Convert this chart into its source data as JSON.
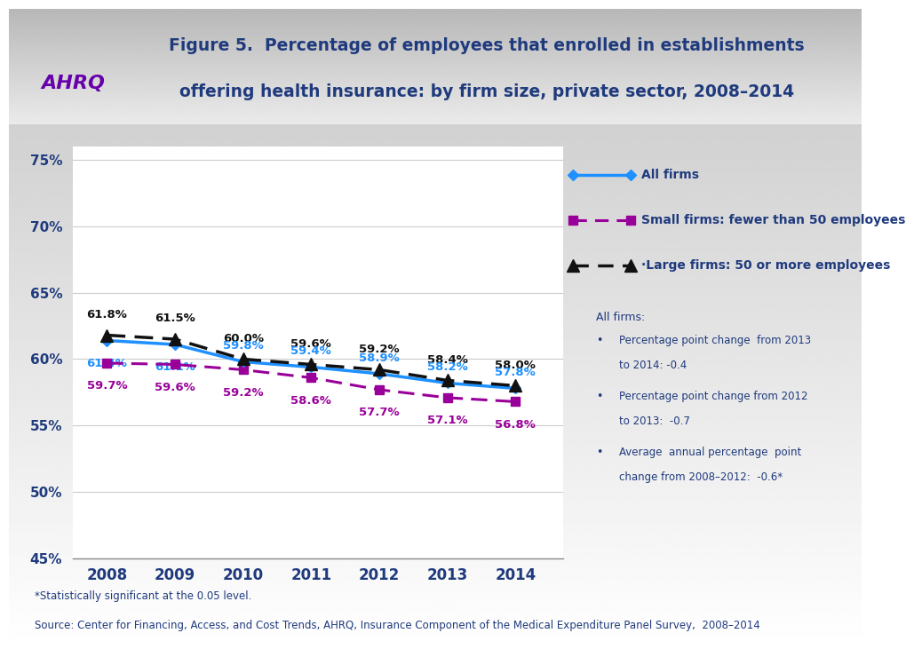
{
  "title_line1": "Figure 5.  Percentage of employees that enrolled in establishments",
  "title_line2": "offering health insurance: by firm size, private sector, 2008–2014",
  "years": [
    2008,
    2009,
    2010,
    2011,
    2012,
    2013,
    2014
  ],
  "all_firms": [
    61.4,
    61.1,
    59.8,
    59.4,
    58.9,
    58.2,
    57.8
  ],
  "small_firms": [
    59.7,
    59.6,
    59.2,
    58.6,
    57.7,
    57.1,
    56.8
  ],
  "large_firms": [
    61.8,
    61.5,
    60.0,
    59.6,
    59.2,
    58.4,
    58.0
  ],
  "all_firms_color": "#1E90FF",
  "small_firms_color": "#990099",
  "large_firms_color": "#111111",
  "ylim": [
    45,
    76
  ],
  "yticks": [
    45,
    50,
    55,
    60,
    65,
    70,
    75
  ],
  "ytick_labels": [
    "45%",
    "50%",
    "55%",
    "60%",
    "65%",
    "70%",
    "75%"
  ],
  "title_color": "#1F3A7D",
  "title_fontsize": 13.5,
  "bg_top_color": "#C8C8C8",
  "bg_bottom_color": "#FFFFFF",
  "plot_bg_color": "#FFFFFF",
  "label_color_blue": "#1E90FF",
  "label_color_purple": "#990099",
  "label_color_black": "#111111",
  "annotation_color": "#1F3A7D",
  "footer_note": "*Statistically significant at the 0.05 level.",
  "footer_source": "Source: Center for Financing, Access, and Cost Trends, AHRQ, Insurance Component of the Medical Expenditure Panel Survey,  2008–2014",
  "legend_all": "All firms",
  "legend_small": "Small firms: fewer than 50 employees",
  "legend_large": "·Large firms: 50 or more employees",
  "annot_title": "All firms:",
  "annot_line1": "Percentage point change  from 2013",
  "annot_line2": "to 2014: -0.4",
  "annot_line3": "Percentage point change from 2012",
  "annot_line4": "to 2013:  -0.7",
  "annot_line5": "Average  annual percentage  point",
  "annot_line6": "change from 2008–2012:  -0.6*"
}
